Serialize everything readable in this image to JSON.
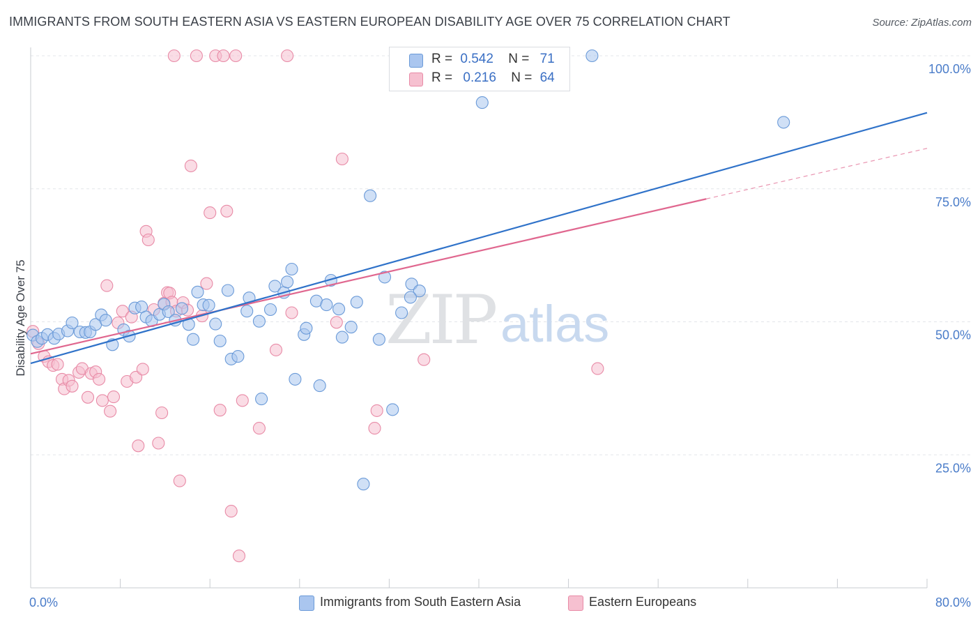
{
  "header": {
    "title": "IMMIGRANTS FROM SOUTH EASTERN ASIA VS EASTERN EUROPEAN DISABILITY AGE OVER 75 CORRELATION CHART",
    "source": "Source: ZipAtlas.com"
  },
  "watermark": {
    "zip": "ZIP",
    "atlas": "atlas"
  },
  "legend_top": {
    "rows": [
      {
        "r_label": "R =",
        "r_value": "0.542",
        "n_label": "N =",
        "n_value": "71"
      },
      {
        "r_label": "R =",
        "r_value": "0.216",
        "n_label": "N =",
        "n_value": "64"
      }
    ]
  },
  "legend_bottom": {
    "items": [
      {
        "label": "Immigrants from South Eastern Asia"
      },
      {
        "label": "Eastern Europeans"
      }
    ]
  },
  "colors": {
    "blue_fill": "#aac6ef",
    "blue_stroke": "#6a9ad8",
    "blue_line": "#2f72c9",
    "pink_fill": "#f6c0d0",
    "pink_stroke": "#e88aa6",
    "pink_line": "#e0678f",
    "tick_text": "#4a7cc9",
    "grid": "#e3e5e9"
  },
  "chart_data": {
    "type": "scatter",
    "title": "IMMIGRANTS FROM SOUTH EASTERN ASIA VS EASTERN EUROPEAN DISABILITY AGE OVER 75 CORRELATION CHART",
    "xlabel": "",
    "ylabel": "Disability Age Over 75",
    "xlim": [
      0,
      80
    ],
    "ylim": [
      0,
      100
    ],
    "x_tick_labels": [
      "0.0%",
      "80.0%"
    ],
    "y_tick_labels": [
      "25.0%",
      "50.0%",
      "75.0%",
      "100.0%"
    ],
    "y_tick_values": [
      25,
      50,
      75,
      100
    ],
    "grid": true,
    "legend_position": "top-center",
    "series": [
      {
        "name": "Immigrants from South Eastern Asia",
        "color": "#6a9ad8",
        "r": 0.542,
        "n": 71,
        "trend": {
          "x": [
            0,
            80
          ],
          "y": [
            42.2,
            89.3
          ]
        },
        "points": [
          [
            0.2,
            47.5
          ],
          [
            0.6,
            46.3
          ],
          [
            1.0,
            46.9
          ],
          [
            1.5,
            47.6
          ],
          [
            2.1,
            46.9
          ],
          [
            2.5,
            47.7
          ],
          [
            3.3,
            48.3
          ],
          [
            3.7,
            49.8
          ],
          [
            4.4,
            48.1
          ],
          [
            4.9,
            48.0
          ],
          [
            5.3,
            48.1
          ],
          [
            5.8,
            49.5
          ],
          [
            6.3,
            51.3
          ],
          [
            6.7,
            50.3
          ],
          [
            7.3,
            45.7
          ],
          [
            8.3,
            48.5
          ],
          [
            8.8,
            47.3
          ],
          [
            9.3,
            52.6
          ],
          [
            9.9,
            52.8
          ],
          [
            10.3,
            50.9
          ],
          [
            10.8,
            50.2
          ],
          [
            11.5,
            51.4
          ],
          [
            11.9,
            53.3
          ],
          [
            12.3,
            51.9
          ],
          [
            12.9,
            50.3
          ],
          [
            13.5,
            52.5
          ],
          [
            14.1,
            49.5
          ],
          [
            14.5,
            46.7
          ],
          [
            14.9,
            55.6
          ],
          [
            15.4,
            53.2
          ],
          [
            15.9,
            53.1
          ],
          [
            16.5,
            49.6
          ],
          [
            16.9,
            46.4
          ],
          [
            17.6,
            55.9
          ],
          [
            17.9,
            43.0
          ],
          [
            18.5,
            43.5
          ],
          [
            19.3,
            52.0
          ],
          [
            19.5,
            54.5
          ],
          [
            20.4,
            50.1
          ],
          [
            20.6,
            35.5
          ],
          [
            21.4,
            52.3
          ],
          [
            21.8,
            56.7
          ],
          [
            22.6,
            55.5
          ],
          [
            22.9,
            57.5
          ],
          [
            23.3,
            59.9
          ],
          [
            23.6,
            39.2
          ],
          [
            24.4,
            47.6
          ],
          [
            24.6,
            48.8
          ],
          [
            25.5,
            53.9
          ],
          [
            25.8,
            38.0
          ],
          [
            26.4,
            53.2
          ],
          [
            26.8,
            57.8
          ],
          [
            27.5,
            52.4
          ],
          [
            27.8,
            47.1
          ],
          [
            28.6,
            49.0
          ],
          [
            29.1,
            53.7
          ],
          [
            29.7,
            19.5
          ],
          [
            30.3,
            73.7
          ],
          [
            31.1,
            46.7
          ],
          [
            31.6,
            58.4
          ],
          [
            32.3,
            33.5
          ],
          [
            33.1,
            51.7
          ],
          [
            34.0,
            57.1
          ],
          [
            34.7,
            55.8
          ],
          [
            33.9,
            54.6
          ],
          [
            36.3,
            100.0
          ],
          [
            40.3,
            91.2
          ],
          [
            41.3,
            100.0
          ],
          [
            50.1,
            100.0
          ],
          [
            67.2,
            87.5
          ],
          [
            33.0,
            100.0
          ]
        ]
      },
      {
        "name": "Eastern Europeans",
        "color": "#e88aa6",
        "r": 0.216,
        "n": 64,
        "trend": {
          "x": [
            0,
            60.3
          ],
          "y": [
            44.0,
            73.1
          ]
        },
        "trend_dashed": {
          "x": [
            60.3,
            80
          ],
          "y": [
            73.1,
            82.6
          ]
        },
        "points": [
          [
            0.2,
            48.2
          ],
          [
            0.7,
            45.9
          ],
          [
            1.2,
            43.5
          ],
          [
            1.6,
            42.5
          ],
          [
            2.0,
            41.8
          ],
          [
            2.4,
            42.0
          ],
          [
            2.8,
            39.2
          ],
          [
            3.0,
            37.4
          ],
          [
            3.4,
            39.0
          ],
          [
            3.7,
            37.9
          ],
          [
            4.3,
            40.5
          ],
          [
            4.6,
            41.2
          ],
          [
            5.1,
            35.8
          ],
          [
            5.4,
            40.3
          ],
          [
            5.8,
            40.6
          ],
          [
            6.1,
            39.2
          ],
          [
            6.4,
            35.2
          ],
          [
            6.8,
            56.8
          ],
          [
            7.1,
            33.2
          ],
          [
            7.4,
            35.9
          ],
          [
            7.8,
            49.8
          ],
          [
            8.2,
            52.0
          ],
          [
            8.6,
            38.8
          ],
          [
            9.0,
            50.9
          ],
          [
            9.4,
            39.6
          ],
          [
            9.6,
            26.7
          ],
          [
            10.0,
            41.1
          ],
          [
            10.3,
            67.0
          ],
          [
            10.5,
            65.4
          ],
          [
            11.0,
            52.3
          ],
          [
            11.4,
            27.2
          ],
          [
            11.7,
            32.9
          ],
          [
            11.9,
            53.5
          ],
          [
            12.2,
            55.5
          ],
          [
            12.4,
            55.4
          ],
          [
            12.6,
            53.7
          ],
          [
            12.8,
            100.0
          ],
          [
            13.0,
            52.0
          ],
          [
            13.3,
            20.1
          ],
          [
            13.6,
            53.6
          ],
          [
            14.0,
            52.2
          ],
          [
            14.3,
            79.3
          ],
          [
            14.8,
            100.0
          ],
          [
            15.3,
            51.1
          ],
          [
            15.7,
            57.2
          ],
          [
            16.0,
            70.5
          ],
          [
            16.5,
            100.0
          ],
          [
            16.9,
            33.4
          ],
          [
            17.2,
            100.0
          ],
          [
            17.5,
            70.8
          ],
          [
            17.9,
            14.4
          ],
          [
            18.3,
            100.0
          ],
          [
            18.6,
            6.0
          ],
          [
            18.9,
            35.2
          ],
          [
            20.4,
            30.0
          ],
          [
            21.9,
            44.7
          ],
          [
            22.9,
            100.0
          ],
          [
            23.3,
            51.7
          ],
          [
            27.3,
            49.9
          ],
          [
            27.8,
            80.6
          ],
          [
            30.9,
            33.3
          ],
          [
            30.7,
            30.0
          ],
          [
            35.1,
            42.9
          ],
          [
            50.6,
            41.2
          ]
        ]
      }
    ]
  }
}
